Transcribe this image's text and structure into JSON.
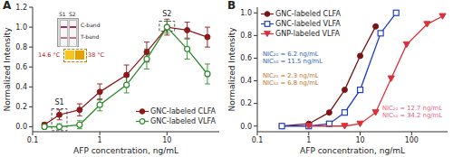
{
  "chart_data": [
    {
      "type": "line",
      "title": "A",
      "x_label": "AFP concentration, ng/mL",
      "y_label": "Normalized Intensity",
      "log": "x",
      "grid": false,
      "legend": "lower right",
      "xlim": [
        0.1,
        60
      ],
      "xticks": [
        0.1,
        1,
        10
      ],
      "ylim": [
        -0.05,
        1.2
      ],
      "yticks": [
        {
          "value": 0,
          "label": "0.0"
        },
        0.2,
        0.4,
        0.6,
        0.8,
        {
          "value": 1,
          "label": "1.0"
        },
        1.2
      ],
      "x": [
        0.15,
        0.25,
        0.5,
        1,
        2.5,
        5,
        10,
        20,
        40
      ],
      "series": [
        {
          "name": "GNC-labeled CLFA",
          "color": "#8b1a1a",
          "marker": "circle",
          "line_style": "solid",
          "values": [
            0.02,
            0.12,
            0.17,
            0.35,
            0.52,
            0.75,
            1.0,
            0.97,
            0.9
          ],
          "errors": [
            0.02,
            0.05,
            0.06,
            0.08,
            0.1,
            0.1,
            0.08,
            0.08,
            0.1
          ]
        },
        {
          "name": "GNC-labeled VLFA",
          "color": "#2e8b2e",
          "marker": "open_circle",
          "line_style": "solid",
          "values": [
            0.0,
            0.0,
            0.02,
            0.22,
            0.42,
            0.68,
            1.0,
            0.78,
            0.53
          ],
          "errors": [
            0.02,
            0.03,
            0.04,
            0.06,
            0.08,
            0.1,
            0.06,
            0.1,
            0.1
          ]
        }
      ],
      "annotations": [
        {
          "text": "S1"
        },
        {
          "text": "S2"
        }
      ],
      "inset": {
        "strip_labels": [
          "S1",
          "S2"
        ],
        "band_labels": [
          "C-band",
          "T-band"
        ],
        "temperatures": [
          "14.6 °C",
          "38 °C"
        ]
      }
    },
    {
      "type": "line",
      "title": "B",
      "x_label": "AFP concentration, ng/mL",
      "y_label": "Normalized Intensity",
      "log": "x",
      "grid": false,
      "legend": "upper left",
      "xlim": [
        0.1,
        500
      ],
      "xticks": [
        0.1,
        1,
        10,
        100
      ],
      "ylim": [
        -0.05,
        1.05
      ],
      "yticks": [
        {
          "value": 0,
          "label": "0.0"
        },
        0.2,
        0.4,
        0.6,
        0.8,
        {
          "value": 1,
          "label": "1.0"
        }
      ],
      "series": [
        {
          "name": "GNC-labeled CLFA",
          "color": "#7a1414",
          "marker": "circle",
          "line_style": "solid",
          "x": [
            0.3,
            1,
            2.5,
            5,
            10,
            20
          ],
          "values": [
            0.0,
            0.02,
            0.12,
            0.32,
            0.62,
            0.88
          ]
        },
        {
          "name": "GNC-labeled VLFA",
          "color": "#2040c0",
          "marker": "open_square",
          "line_style": "solid",
          "x": [
            0.3,
            1,
            2.5,
            5,
            10,
            25,
            50
          ],
          "values": [
            0.0,
            0.0,
            0.02,
            0.12,
            0.32,
            0.82,
            1.0
          ]
        },
        {
          "name": "GNP-labeled VLFA",
          "color": "#d9303a",
          "marker": "triangle_down",
          "line_style": "solid",
          "x": [
            1,
            5,
            10,
            20,
            40,
            80,
            200,
            400
          ],
          "values": [
            0.0,
            0.0,
            0.02,
            0.12,
            0.42,
            0.72,
            0.9,
            0.97
          ]
        }
      ],
      "annotations": [
        {
          "lines": [
            "NIC₂₀ = 6.2 ng/mL",
            "NIC₅₀ = 11.5 ng/mL"
          ],
          "color": "#2a5db0"
        },
        {
          "lines": [
            "NIC₂₀ = 2.3 ng/mL",
            "NIC₅₀ = 6.8 ng/mL"
          ],
          "color": "#c0702a"
        },
        {
          "lines": [
            "NIC₂₀ = 12.7 ng/mL",
            "NIC₅₀ = 34.2 ng/mL"
          ],
          "color": "#e06080"
        }
      ]
    }
  ]
}
